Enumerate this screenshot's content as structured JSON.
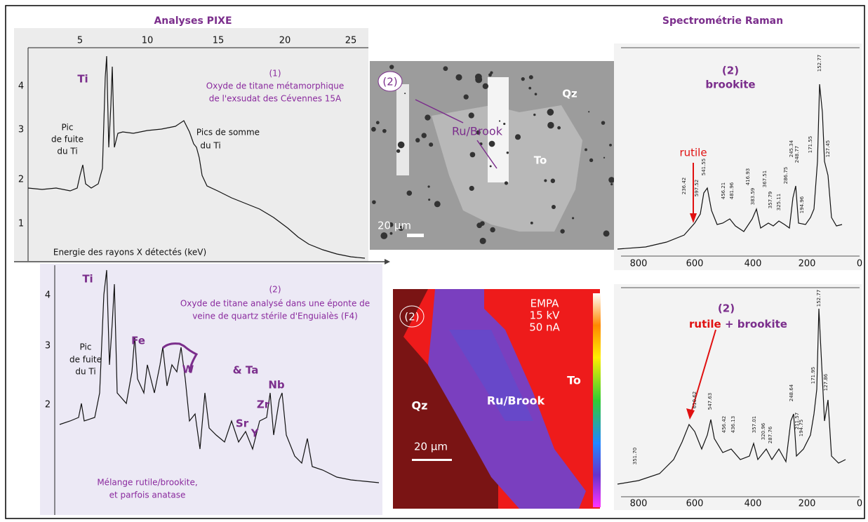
{
  "header": {
    "left_title": "Analyses PIXE",
    "right_title": "Spectrométrie Raman"
  },
  "pixe_top": {
    "x_ticks": [
      "5",
      "10",
      "15",
      "20",
      "25"
    ],
    "y_ticks": [
      "4",
      "3",
      "2",
      "1"
    ],
    "ti": "Ti",
    "caption": [
      "(1)",
      "Oxyde de titane métamorphique",
      "de l'exsudat des Cévennes 15A"
    ],
    "escape_peak": [
      "Pic",
      "de fuite",
      "du Ti"
    ],
    "sum_peaks": [
      "Pics de somme",
      "du Ti"
    ],
    "x_label": "Energie des rayons X détectés (keV)"
  },
  "pixe_bottom": {
    "y_ticks": [
      "4",
      "3",
      "2"
    ],
    "ti": "Ti",
    "caption": [
      "(2)",
      "Oxyde de titane analysé dans une éponte de",
      "veine de quartz stérile d'Enguialès (F4)"
    ],
    "escape_peak": [
      "Pic",
      "de fuite",
      "du Ti"
    ],
    "elements": [
      "Fe",
      "W",
      "& Ta",
      "Nb",
      "Zr",
      "Sr",
      "Y"
    ],
    "note": [
      "Mélange rutile/brookite,",
      "et parfois anatase"
    ]
  },
  "sem_image": {
    "sample": "(2)",
    "qz": "Qz",
    "phase": "Ru/Brook",
    "to": "To",
    "scale": "20 µm"
  },
  "empa_map": {
    "sample": "(2)",
    "conditions": [
      "EMPA",
      "15 kV",
      "50 nA"
    ],
    "qz": "Qz",
    "phase": "Ru/Brook",
    "to": "To",
    "scale": "20 µm"
  },
  "raman_top": {
    "sample": "(2)",
    "mineral": "brookite",
    "rutile": "rutile",
    "x_ticks": [
      "800",
      "600",
      "400",
      "200",
      "0"
    ],
    "peaks": [
      "236.42",
      "597.52",
      "541.55",
      "456.21",
      "481.96",
      "416.93",
      "383.59",
      "367.51",
      "357.79",
      "325.11",
      "286.75",
      "245.34",
      "248.77",
      "194.96",
      "171.55",
      "152.77",
      "127.45"
    ]
  },
  "raman_bottom": {
    "sample": "(2)",
    "rutile": "rutile",
    "plus": "+",
    "mineral": "brookite",
    "x_ticks": [
      "800",
      "600",
      "400",
      "200",
      "0"
    ],
    "peaks": [
      "351.70",
      "610.62",
      "547.63",
      "456.42",
      "436.13",
      "357.01",
      "320.96",
      "287.76",
      "248.64",
      "211.57",
      "194.75",
      "171.95",
      "152.77",
      "127.86"
    ]
  }
}
